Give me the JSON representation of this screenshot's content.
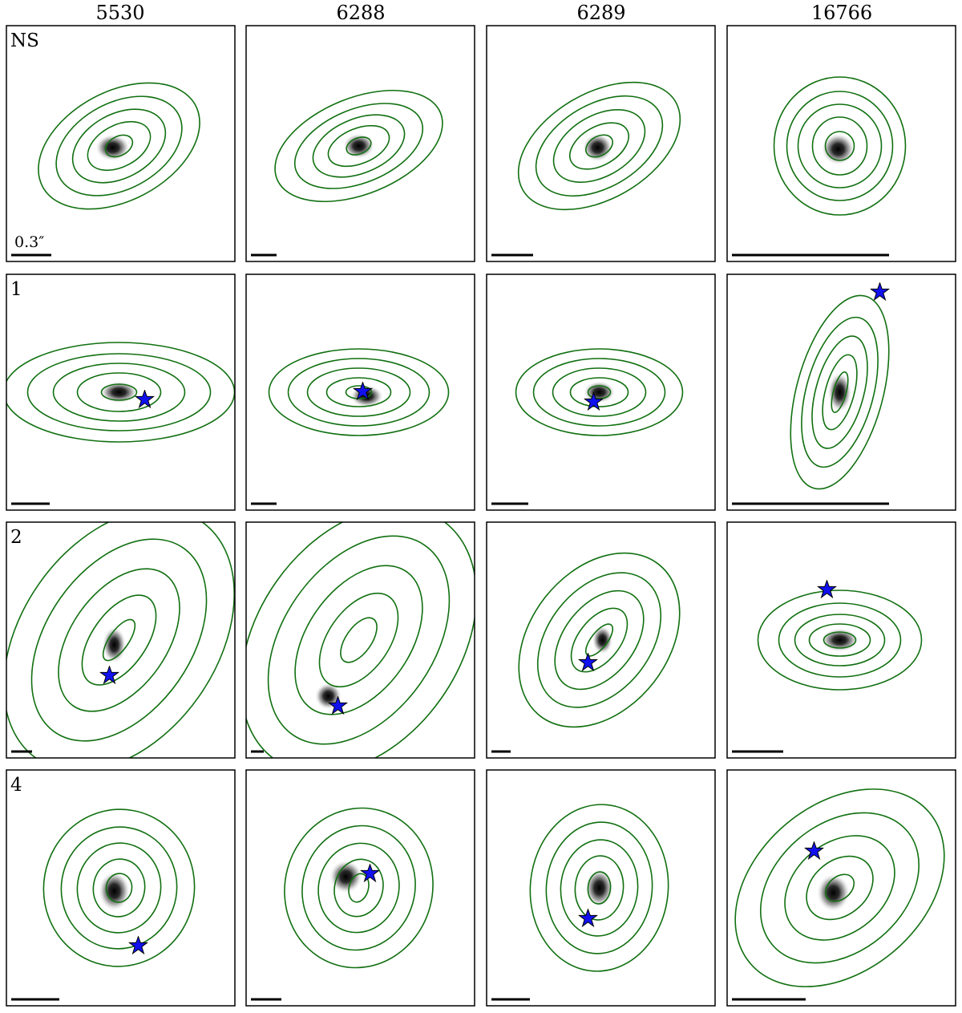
{
  "figure": {
    "columns": [
      "5530",
      "6288",
      "6289",
      "16766"
    ],
    "rows": [
      "NS",
      "1",
      "2",
      "4"
    ],
    "scale_label": "0.3″",
    "contour_color": "#117011",
    "star_color": "#1111ee",
    "panels": [
      [
        {
          "ang": -28,
          "ax": [
            18,
            42,
            62,
            84,
            108
          ],
          "ay": [
            12,
            26,
            40,
            54,
            68
          ],
          "blob": {
            "dx": -8,
            "dy": 2,
            "w": 32,
            "h": 22
          },
          "star": null,
          "bar": 50
        },
        {
          "ang": -22,
          "ax": [
            16,
            40,
            60,
            84,
            110
          ],
          "ay": [
            10,
            22,
            34,
            46,
            60
          ],
          "blob": {
            "dx": 0,
            "dy": 0,
            "w": 28,
            "h": 20
          },
          "star": null,
          "bar": 32
        },
        {
          "ang": -30,
          "ax": [
            18,
            40,
            62,
            86,
            110
          ],
          "ay": [
            12,
            24,
            38,
            52,
            66
          ],
          "blob": {
            "dx": -2,
            "dy": 2,
            "w": 26,
            "h": 24
          },
          "star": null,
          "bar": 52
        },
        {
          "ang": 0,
          "ax": [
            18,
            34,
            52,
            66,
            82
          ],
          "ay": [
            18,
            36,
            52,
            68,
            86
          ],
          "blob": {
            "dx": -2,
            "dy": 4,
            "w": 30,
            "h": 28
          },
          "star": null,
          "bar": 196
        }
      ],
      [
        {
          "ang": 0,
          "ax": [
            22,
            52,
            82,
            114,
            144
          ],
          "ay": [
            10,
            24,
            36,
            48,
            62
          ],
          "blob": {
            "dx": 0,
            "dy": 0,
            "w": 36,
            "h": 16
          },
          "star": {
            "dx": 32,
            "dy": 9
          },
          "bar": 48
        },
        {
          "ang": 0,
          "ax": [
            16,
            40,
            64,
            88,
            112
          ],
          "ay": [
            8,
            18,
            30,
            42,
            54
          ],
          "blob": {
            "dx": 10,
            "dy": 5,
            "w": 30,
            "h": 16
          },
          "star": {
            "dx": 5,
            "dy": -1
          },
          "bar": 32
        },
        {
          "ang": 0,
          "ax": [
            14,
            36,
            58,
            82,
            104
          ],
          "ay": [
            8,
            18,
            30,
            42,
            54
          ],
          "blob": {
            "dx": 0,
            "dy": 0,
            "w": 28,
            "h": 16
          },
          "star": {
            "dx": -7,
            "dy": 12
          },
          "bar": 46
        },
        {
          "ang": 15,
          "ax": [
            8,
            18,
            30,
            42,
            54
          ],
          "ay": [
            26,
            48,
            72,
            96,
            124
          ],
          "blob": {
            "dx": 0,
            "dy": 0,
            "w": 18,
            "h": 38
          },
          "star": {
            "dx": 50,
            "dy": -125
          },
          "bar": 196
        }
      ],
      [
        {
          "ang": 35,
          "ax": [
            12,
            34,
            60,
            90,
            122
          ],
          "ay": [
            30,
            64,
            100,
            140,
            180
          ],
          "blob": {
            "dx": -6,
            "dy": 6,
            "w": 18,
            "h": 34
          },
          "star": {
            "dx": -12,
            "dy": 44
          },
          "bar": 26
        },
        {
          "ang": 35,
          "ax": [
            16,
            38,
            64,
            94,
            126
          ],
          "ay": [
            32,
            66,
            104,
            144,
            182
          ],
          "blob": {
            "dx": -38,
            "dy": 70,
            "w": 22,
            "h": 22
          },
          "star": {
            "dx": -26,
            "dy": 82
          },
          "bar": 16
        },
        {
          "ang": 38,
          "ax": [
            10,
            26,
            44,
            64,
            86
          ],
          "ay": [
            24,
            46,
            70,
            94,
            120
          ],
          "blob": {
            "dx": 4,
            "dy": 0,
            "w": 14,
            "h": 24
          },
          "star": {
            "dx": -14,
            "dy": 28
          },
          "bar": 24
        },
        {
          "ang": 0,
          "ax": [
            20,
            38,
            56,
            76,
            102
          ],
          "ay": [
            10,
            20,
            32,
            46,
            62
          ],
          "blob": {
            "dx": 0,
            "dy": 0,
            "w": 36,
            "h": 18
          },
          "star": {
            "dx": -16,
            "dy": -63
          },
          "bar": 64
        }
      ],
      [
        {
          "ang": 10,
          "ax": [
            16,
            32,
            52,
            72,
            94
          ],
          "ay": [
            18,
            36,
            56,
            76,
            98
          ],
          "blob": {
            "dx": -6,
            "dy": 4,
            "w": 28,
            "h": 38
          },
          "star": {
            "dx": 24,
            "dy": 72
          },
          "bar": 60
        },
        {
          "ang": 15,
          "ax": [
            12,
            30,
            50,
            70,
            92
          ],
          "ay": [
            18,
            36,
            56,
            78,
            100
          ],
          "blob": {
            "dx": -16,
            "dy": -14,
            "w": 30,
            "h": 30
          },
          "star": {
            "dx": 14,
            "dy": -18
          },
          "bar": 38
        },
        {
          "ang": 5,
          "ax": [
            14,
            30,
            48,
            66,
            86
          ],
          "ay": [
            20,
            40,
            60,
            82,
            104
          ],
          "blob": {
            "dx": 0,
            "dy": 0,
            "w": 24,
            "h": 36
          },
          "star": {
            "dx": -14,
            "dy": 38
          },
          "bar": 48
        },
        {
          "ang": -40,
          "ax": [
            20,
            46,
            76,
            110,
            146
          ],
          "ay": [
            14,
            34,
            56,
            80,
            104
          ],
          "blob": {
            "dx": -8,
            "dy": 6,
            "w": 30,
            "h": 36
          },
          "star": {
            "dx": -32,
            "dy": -46
          },
          "bar": 92
        }
      ]
    ]
  }
}
